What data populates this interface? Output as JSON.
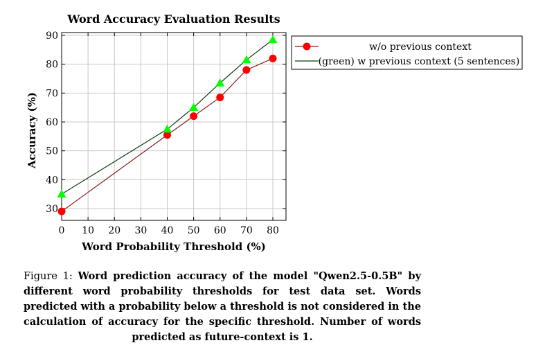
{
  "chart_data": {
    "type": "line",
    "title": "Word Accuracy Evaluation Results",
    "xlabel": "Word Probability Threshold (%)",
    "ylabel": "Accuracy (%)",
    "xlim": [
      0,
      80
    ],
    "ylim": [
      27,
      90
    ],
    "xticks": [
      0,
      10,
      20,
      30,
      40,
      50,
      60,
      70,
      80
    ],
    "yticks": [
      30,
      40,
      50,
      60,
      70,
      80,
      90
    ],
    "grid": true,
    "legend_position": "outside-right",
    "series": [
      {
        "name": "w/o previous context",
        "color": "#ff0000",
        "line_color": "#8b1a1a",
        "marker": "circle",
        "x": [
          0,
          40,
          50,
          60,
          70,
          80
        ],
        "y": [
          29,
          55.5,
          62,
          68.5,
          78,
          82
        ]
      },
      {
        "name": "(green) w previous context (5 sentences)",
        "color": "#00ff00",
        "line_color": "#0a3a0a",
        "marker": "triangle",
        "x": [
          0,
          40,
          50,
          60,
          70,
          80
        ],
        "y": [
          35,
          57.5,
          65,
          73.5,
          81.5,
          88.5
        ]
      }
    ]
  },
  "caption": {
    "label": "Figure 1:",
    "text": "Word prediction accuracy of the model \"Qwen2.5-0.5B\" by different word probability thresholds for test data set. Words predicted with a probability below a threshold is not considered in the calculation of accuracy for the specific threshold. Number of words predicted as future-context is 1."
  }
}
